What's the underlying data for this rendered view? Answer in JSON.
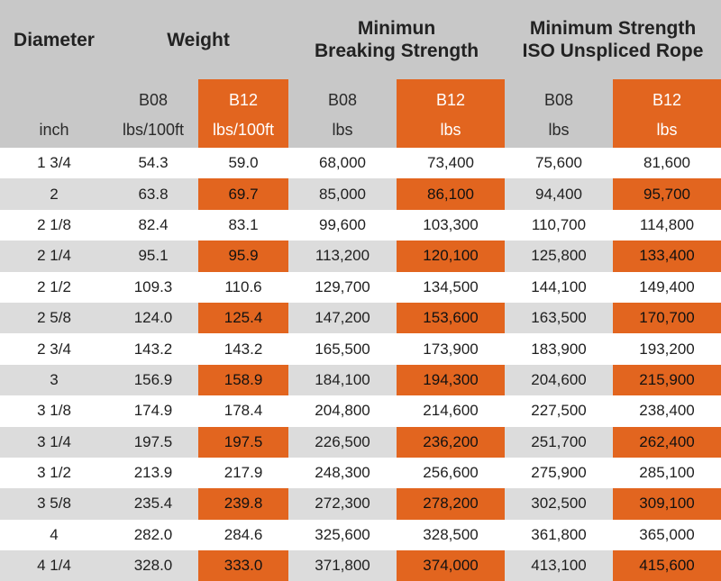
{
  "headers": {
    "diameter": "Diameter",
    "weight": "Weight",
    "mbs_line1": "Minimun",
    "mbs_line2": "Breaking Strength",
    "iso_line1": "Minimum Strength",
    "iso_line2": "ISO Unspliced Rope"
  },
  "subheaders": {
    "b08": "B08",
    "b12": "B12"
  },
  "units": {
    "diameter": "inch",
    "weight": "lbs/100ft",
    "strength": "lbs"
  },
  "colors": {
    "header_bg": "#c8c8c8",
    "accent": "#e2651f",
    "row_alt": "#dcdcdc"
  },
  "rows": [
    {
      "diameter": "1 3/4",
      "w_b08": "54.3",
      "w_b12": "59.0",
      "mbs_b08": "68,000",
      "mbs_b12": "73,400",
      "iso_b08": "75,600",
      "iso_b12": "81,600"
    },
    {
      "diameter": "2",
      "w_b08": "63.8",
      "w_b12": "69.7",
      "mbs_b08": "85,000",
      "mbs_b12": "86,100",
      "iso_b08": "94,400",
      "iso_b12": "95,700"
    },
    {
      "diameter": "2 1/8",
      "w_b08": "82.4",
      "w_b12": "83.1",
      "mbs_b08": "99,600",
      "mbs_b12": "103,300",
      "iso_b08": "110,700",
      "iso_b12": "114,800"
    },
    {
      "diameter": "2 1/4",
      "w_b08": "95.1",
      "w_b12": "95.9",
      "mbs_b08": "113,200",
      "mbs_b12": "120,100",
      "iso_b08": "125,800",
      "iso_b12": "133,400"
    },
    {
      "diameter": "2 1/2",
      "w_b08": "109.3",
      "w_b12": "110.6",
      "mbs_b08": "129,700",
      "mbs_b12": "134,500",
      "iso_b08": "144,100",
      "iso_b12": "149,400"
    },
    {
      "diameter": "2 5/8",
      "w_b08": "124.0",
      "w_b12": "125.4",
      "mbs_b08": "147,200",
      "mbs_b12": "153,600",
      "iso_b08": "163,500",
      "iso_b12": "170,700"
    },
    {
      "diameter": "2 3/4",
      "w_b08": "143.2",
      "w_b12": "143.2",
      "mbs_b08": "165,500",
      "mbs_b12": "173,900",
      "iso_b08": "183,900",
      "iso_b12": "193,200"
    },
    {
      "diameter": "3",
      "w_b08": "156.9",
      "w_b12": "158.9",
      "mbs_b08": "184,100",
      "mbs_b12": "194,300",
      "iso_b08": "204,600",
      "iso_b12": "215,900"
    },
    {
      "diameter": "3 1/8",
      "w_b08": "174.9",
      "w_b12": "178.4",
      "mbs_b08": "204,800",
      "mbs_b12": "214,600",
      "iso_b08": "227,500",
      "iso_b12": "238,400"
    },
    {
      "diameter": "3 1/4",
      "w_b08": "197.5",
      "w_b12": "197.5",
      "mbs_b08": "226,500",
      "mbs_b12": "236,200",
      "iso_b08": "251,700",
      "iso_b12": "262,400"
    },
    {
      "diameter": "3 1/2",
      "w_b08": "213.9",
      "w_b12": "217.9",
      "mbs_b08": "248,300",
      "mbs_b12": "256,600",
      "iso_b08": "275,900",
      "iso_b12": "285,100"
    },
    {
      "diameter": "3 5/8",
      "w_b08": "235.4",
      "w_b12": "239.8",
      "mbs_b08": "272,300",
      "mbs_b12": "278,200",
      "iso_b08": "302,500",
      "iso_b12": "309,100"
    },
    {
      "diameter": "4",
      "w_b08": "282.0",
      "w_b12": "284.6",
      "mbs_b08": "325,600",
      "mbs_b12": "328,500",
      "iso_b08": "361,800",
      "iso_b12": "365,000"
    },
    {
      "diameter": "4 1/4",
      "w_b08": "328.0",
      "w_b12": "333.0",
      "mbs_b08": "371,800",
      "mbs_b12": "374,000",
      "iso_b08": "413,100",
      "iso_b12": "415,600"
    }
  ]
}
